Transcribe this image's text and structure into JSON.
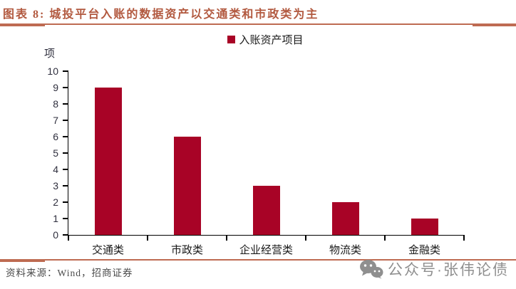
{
  "header": {
    "title": "图表 8: 城投平台入账的数据资产以交通类和市政类为主"
  },
  "chart_data": {
    "type": "bar",
    "title": "城投平台入账的数据资产以交通类和市政类为主",
    "unit_label": "项",
    "categories": [
      "交通类",
      "市政类",
      "企业经营类",
      "物流类",
      "金融类"
    ],
    "series": [
      {
        "name": "入账资产项目",
        "values": [
          9,
          6,
          3,
          2,
          1
        ]
      }
    ],
    "ylim": [
      0,
      10
    ],
    "ytick_step": 1,
    "grid": false,
    "legend_position": "top-center",
    "xlabel": "",
    "ylabel": "项"
  },
  "footer": {
    "source": "资料来源：Wind，招商证券",
    "watermark": "公众号·张伟论债"
  },
  "icons": {
    "watermark_icon": "wechat-icon"
  },
  "colors": {
    "bar": "#A80326",
    "title": "#B2593F",
    "rule": "#BE6B52",
    "axis": "#000000",
    "tick_label": "#2F2F3E",
    "category_label": "#1A1A1A",
    "source_text": "#4A4A4A",
    "watermark": "#8F8F8F"
  }
}
